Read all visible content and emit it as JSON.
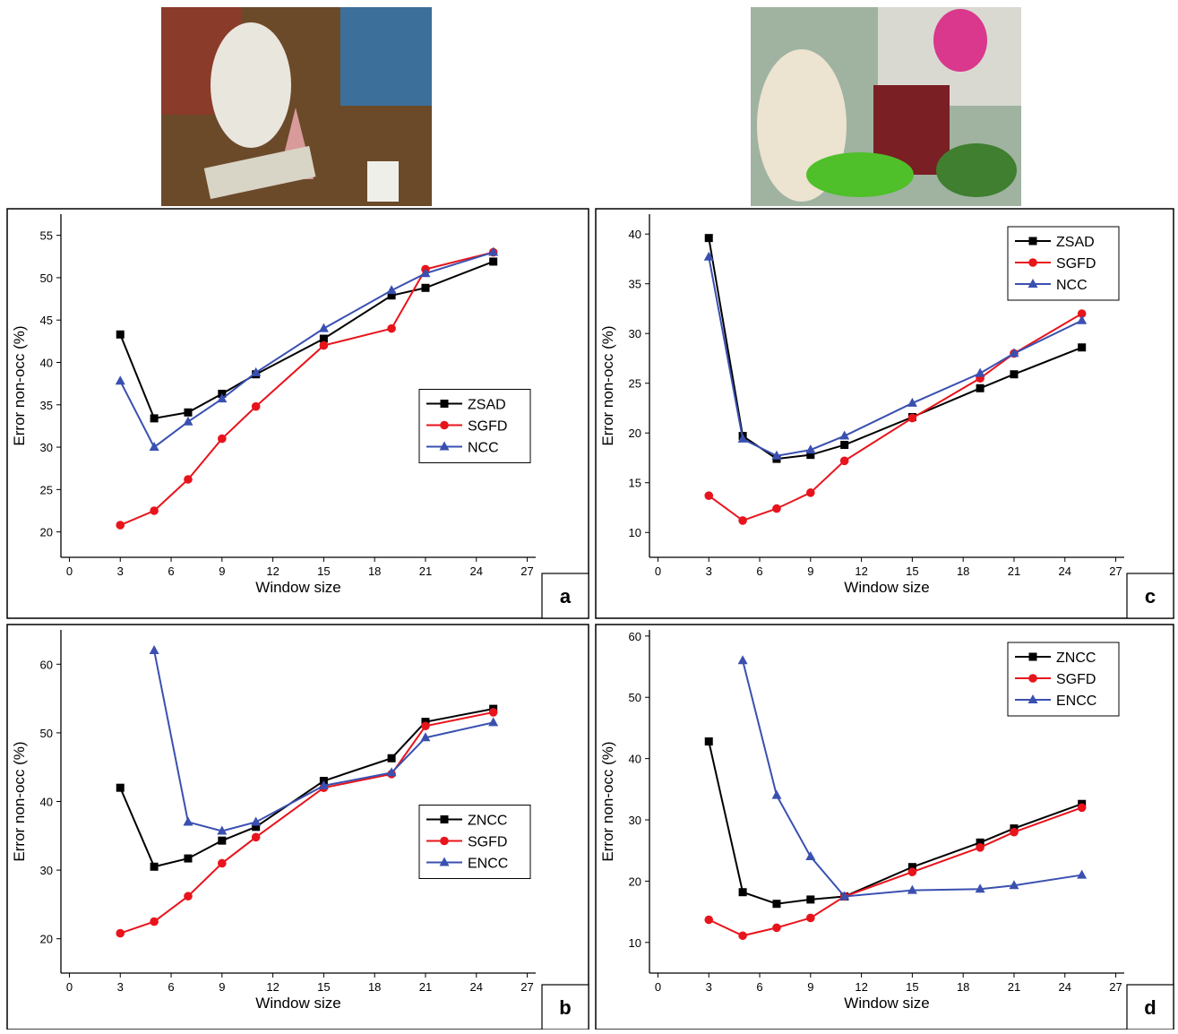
{
  "chart_data": [
    {
      "type": "line",
      "panel_label": "a",
      "x_label": "Window size",
      "y_label": "Error non-occ (%)",
      "x": [
        3,
        5,
        7,
        9,
        11,
        15,
        19,
        21,
        25
      ],
      "xlim": [
        -0.5,
        27.5
      ],
      "xticks": [
        0,
        3,
        6,
        9,
        12,
        15,
        18,
        21,
        24,
        27
      ],
      "ylim": [
        17,
        57.5
      ],
      "yticks": [
        20,
        25,
        30,
        35,
        40,
        45,
        50,
        55
      ],
      "legend": "center right",
      "series": [
        {
          "name": "ZSAD",
          "color": "#000000",
          "marker": "square",
          "values": [
            43.3,
            33.4,
            34.1,
            36.3,
            38.6,
            42.8,
            47.9,
            48.8,
            51.9
          ]
        },
        {
          "name": "SGFD",
          "color": "#e8141c",
          "marker": "circle",
          "values": [
            20.8,
            22.5,
            26.2,
            31.0,
            34.8,
            42.0,
            44.0,
            51.0,
            53.0
          ]
        },
        {
          "name": "NCC",
          "color": "#3a50b0",
          "marker": "triangle",
          "values": [
            37.8,
            30.0,
            33.0,
            35.7,
            38.8,
            44.0,
            48.5,
            50.5,
            53.0
          ]
        }
      ]
    },
    {
      "type": "line",
      "panel_label": "c",
      "x_label": "Window size",
      "y_label": "Error non-occ (%)",
      "x": [
        3,
        5,
        7,
        9,
        11,
        15,
        19,
        21,
        25
      ],
      "xlim": [
        -0.5,
        27.5
      ],
      "xticks": [
        0,
        3,
        6,
        9,
        12,
        15,
        18,
        21,
        24,
        27
      ],
      "ylim": [
        7.5,
        42
      ],
      "yticks": [
        10,
        15,
        20,
        25,
        30,
        35,
        40
      ],
      "legend": "upper right",
      "series": [
        {
          "name": "ZSAD",
          "color": "#000000",
          "marker": "square",
          "values": [
            39.6,
            19.7,
            17.4,
            17.8,
            18.8,
            21.6,
            24.5,
            25.9,
            28.6
          ]
        },
        {
          "name": "SGFD",
          "color": "#e8141c",
          "marker": "circle",
          "values": [
            13.7,
            11.2,
            12.4,
            14.0,
            17.2,
            21.5,
            25.5,
            28.0,
            32.0
          ]
        },
        {
          "name": "NCC",
          "color": "#3a50b0",
          "marker": "triangle",
          "values": [
            37.7,
            19.4,
            17.7,
            18.3,
            19.7,
            23.0,
            26.0,
            28.0,
            31.3
          ]
        }
      ]
    },
    {
      "type": "line",
      "panel_label": "b",
      "x_label": "Window size",
      "y_label": "Error non-occ (%)",
      "x": [
        3,
        5,
        7,
        9,
        11,
        15,
        19,
        21,
        25
      ],
      "xlim": [
        -0.5,
        27.5
      ],
      "xticks": [
        0,
        3,
        6,
        9,
        12,
        15,
        18,
        21,
        24,
        27
      ],
      "ylim": [
        15,
        65
      ],
      "yticks": [
        20,
        30,
        40,
        50,
        60
      ],
      "legend": "center right",
      "series": [
        {
          "name": "ZNCC",
          "color": "#000000",
          "marker": "square",
          "values": [
            42.0,
            30.5,
            31.7,
            34.3,
            36.3,
            43.0,
            46.3,
            51.6,
            53.5
          ]
        },
        {
          "name": "SGFD",
          "color": "#e8141c",
          "marker": "circle",
          "values": [
            20.8,
            22.5,
            26.2,
            31.0,
            34.8,
            42.0,
            44.0,
            51.0,
            53.0
          ]
        },
        {
          "name": "ENCC",
          "color": "#3a50b0",
          "marker": "triangle",
          "values": [
            null,
            62.0,
            37.0,
            35.7,
            37.0,
            42.3,
            44.2,
            49.3,
            51.5
          ]
        }
      ]
    },
    {
      "type": "line",
      "panel_label": "d",
      "x_label": "Window size",
      "y_label": "Error non-occ (%)",
      "x": [
        3,
        5,
        7,
        9,
        11,
        15,
        19,
        21,
        25
      ],
      "xlim": [
        -0.5,
        27.5
      ],
      "xticks": [
        0,
        3,
        6,
        9,
        12,
        15,
        18,
        21,
        24,
        27
      ],
      "ylim": [
        5,
        61
      ],
      "yticks": [
        10,
        20,
        30,
        40,
        50,
        60
      ],
      "legend": "upper right",
      "series": [
        {
          "name": "ZNCC",
          "color": "#000000",
          "marker": "square",
          "values": [
            42.8,
            18.2,
            16.3,
            17.0,
            17.5,
            22.3,
            26.3,
            28.6,
            32.6
          ]
        },
        {
          "name": "SGFD",
          "color": "#e8141c",
          "marker": "circle",
          "values": [
            13.7,
            11.1,
            12.4,
            14.0,
            17.5,
            21.5,
            25.5,
            28.0,
            32.0
          ]
        },
        {
          "name": "ENCC",
          "color": "#3a50b0",
          "marker": "triangle",
          "values": [
            null,
            56.0,
            34.0,
            24.0,
            17.5,
            18.5,
            18.7,
            19.3,
            21.0
          ]
        }
      ]
    }
  ]
}
